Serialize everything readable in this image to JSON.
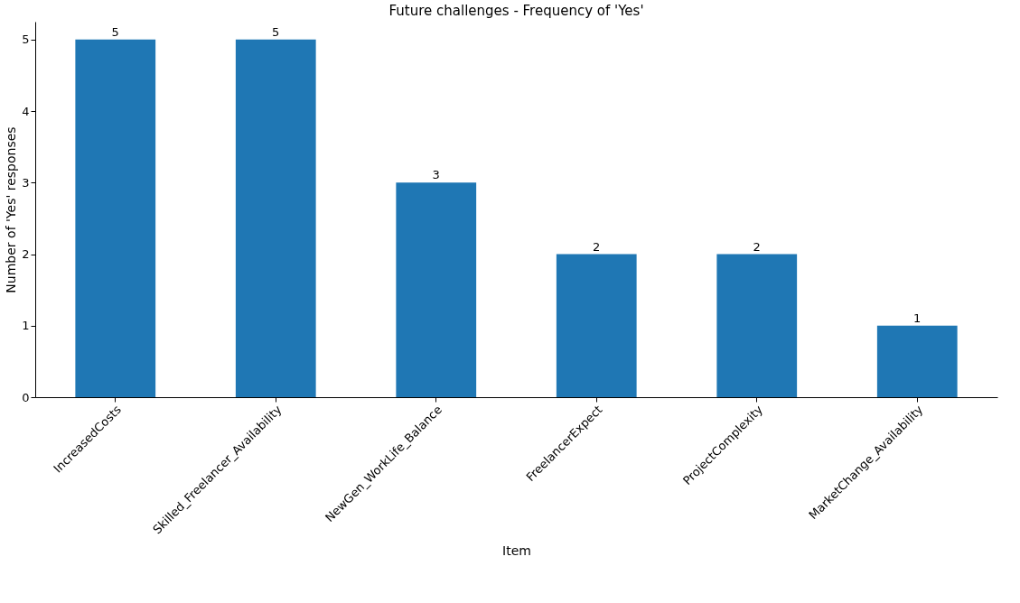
{
  "chart_data": {
    "type": "bar",
    "title": "Future challenges - Frequency of 'Yes'",
    "xlabel": "Item",
    "ylabel": "Number of 'Yes' responses",
    "categories": [
      "IncreasedCosts",
      "Skilled_Freelancer_Availability",
      "NewGen_WorkLife_Balance",
      "FreelancerExpect",
      "ProjectComplexity",
      "MarketChange_Availability"
    ],
    "values": [
      5,
      5,
      3,
      2,
      2,
      1
    ],
    "color": "#1f77b4",
    "ylim": [
      0,
      5.25
    ],
    "yticks": [
      0,
      1,
      2,
      3,
      4,
      5
    ],
    "grid": false,
    "data_labels": true
  }
}
